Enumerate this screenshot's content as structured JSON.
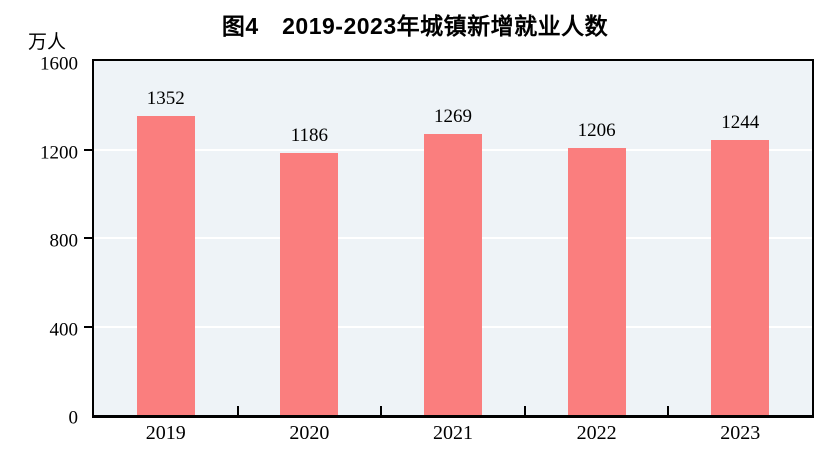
{
  "chart_data": {
    "type": "bar",
    "title": "图4　2019-2023年城镇新增就业人数",
    "unit_label": "万人",
    "categories": [
      "2019",
      "2020",
      "2021",
      "2022",
      "2023"
    ],
    "values": [
      1352,
      1186,
      1269,
      1206,
      1244
    ],
    "bar_labels": [
      "1352",
      "1186",
      "1269",
      "1206",
      "1244"
    ],
    "xlabel": "",
    "ylabel": "万人",
    "ylim": [
      0,
      1600
    ],
    "yticks": [
      0,
      400,
      800,
      1200,
      1600
    ],
    "gridline_values": [
      400,
      800,
      1200
    ],
    "grid": true,
    "legend_position": "none",
    "colors": {
      "bar": "#FA7E7E",
      "plot_background": "#EEF3F7",
      "gridline": "#FFFFFF",
      "axis": "#000000",
      "text": "#000000",
      "page_background": "#FFFFFF"
    }
  }
}
